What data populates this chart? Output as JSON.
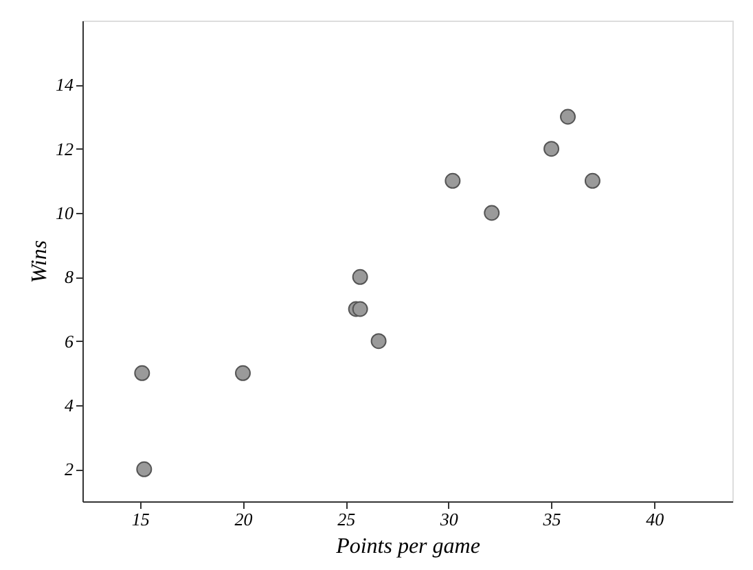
{
  "chart_data": {
    "type": "scatter",
    "xlabel": "Points per game",
    "ylabel": "Wins",
    "x": [
      15.1,
      15.2,
      20.0,
      25.5,
      25.7,
      25.7,
      26.6,
      30.2,
      32.1,
      35.0,
      35.8,
      37.0
    ],
    "series": [
      {
        "color": "#9a9a9a",
        "values": [
          5,
          2,
          5,
          7,
          7,
          8,
          6,
          11,
          10,
          12,
          13,
          11
        ]
      }
    ],
    "xlim": [
      12.2,
      43.8
    ],
    "xticks": [
      15,
      20,
      25,
      30,
      35,
      40
    ],
    "ylim": [
      1,
      16
    ],
    "yticks": [
      2,
      4,
      6,
      8,
      10,
      12,
      14
    ],
    "grid": false,
    "marker": "circle"
  }
}
